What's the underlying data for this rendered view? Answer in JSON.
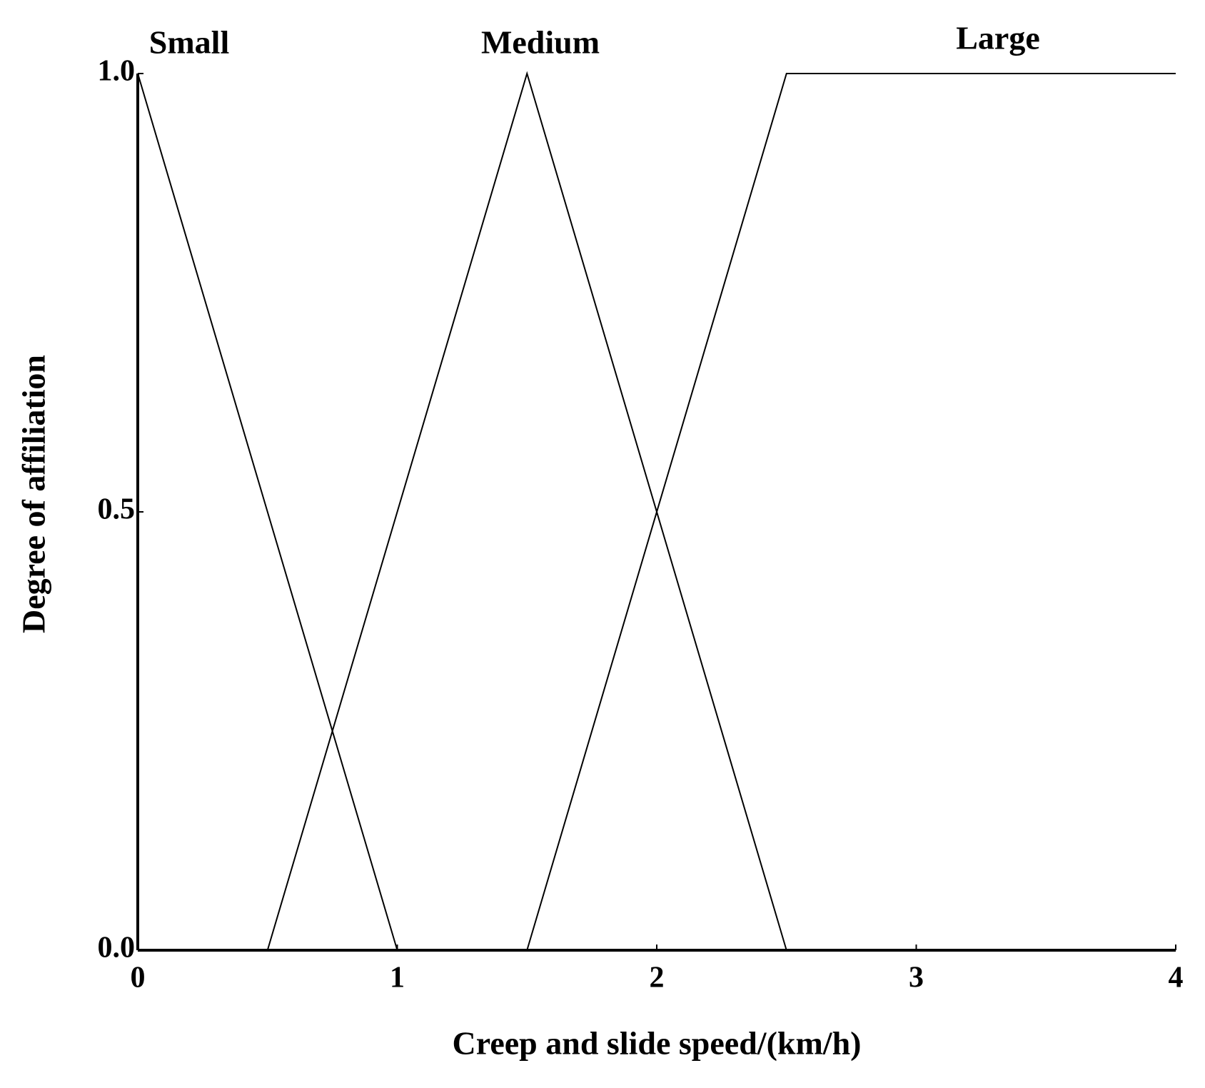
{
  "chart_data": {
    "type": "line",
    "x_label": "Creep and slide speed/(km/h)",
    "y_label": "Degree of affiliation",
    "series": [
      {
        "name": "Small",
        "color": "#000000",
        "x": [
          0,
          1
        ],
        "values": [
          1,
          0
        ]
      },
      {
        "name": "Medium",
        "color": "#000000",
        "x": [
          0.5,
          1.5,
          2.5
        ],
        "values": [
          0,
          1,
          0
        ]
      },
      {
        "name": "Large",
        "color": "#000000",
        "x": [
          1.5,
          2.5,
          4
        ],
        "values": [
          0,
          1,
          1
        ]
      }
    ],
    "xlim": [
      0,
      4
    ],
    "xticks": [
      0,
      1,
      2,
      3,
      4
    ],
    "ylim": [
      0,
      1
    ],
    "yticks": [
      {
        "value": 0,
        "label": "0.0"
      },
      {
        "value": 0.5,
        "label": "0.5"
      },
      {
        "value": 1,
        "label": "1.0"
      }
    ],
    "grid": false
  }
}
